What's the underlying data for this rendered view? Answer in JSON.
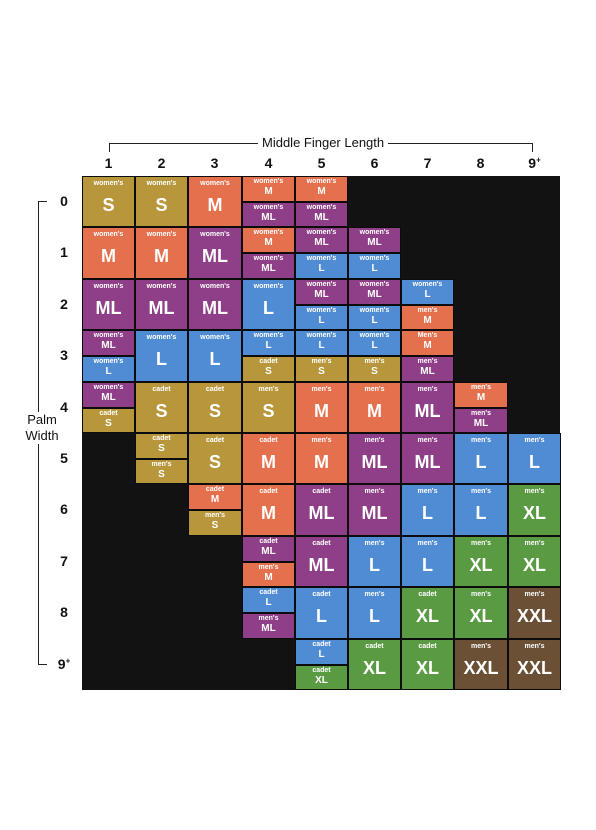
{
  "title": "Middle Finger Length",
  "side_label": [
    "Palm",
    "Width"
  ],
  "col_labels": [
    "1",
    "2",
    "3",
    "4",
    "5",
    "6",
    "7",
    "8",
    "9+"
  ],
  "row_labels": [
    "0",
    "1",
    "2",
    "3",
    "4",
    "5",
    "6",
    "7",
    "8",
    "9+"
  ],
  "colors": {
    "S": "#b8973c",
    "M": "#e4704d",
    "ML": "#8f3f87",
    "L": "#4f8cd3",
    "XL": "#5a9a43",
    "XXL": "#6b5035",
    "empty": "#121212"
  },
  "cells": [
    [
      [
        [
          "women's",
          "S"
        ]
      ],
      [
        [
          "women's",
          "S"
        ]
      ],
      [
        [
          "women's",
          "M"
        ]
      ],
      [
        [
          "women's",
          "M"
        ],
        [
          "women's",
          "ML"
        ]
      ],
      [
        [
          "women's",
          "M"
        ],
        [
          "women's",
          "ML"
        ]
      ],
      null,
      null,
      null,
      null
    ],
    [
      [
        [
          "women's",
          "M"
        ]
      ],
      [
        [
          "women's",
          "M"
        ]
      ],
      [
        [
          "women's",
          "ML"
        ]
      ],
      [
        [
          "women's",
          "M"
        ],
        [
          "women's",
          "ML"
        ]
      ],
      [
        [
          "women's",
          "ML"
        ],
        [
          "women's",
          "L"
        ]
      ],
      [
        [
          "women's",
          "ML"
        ],
        [
          "women's",
          "L"
        ]
      ],
      null,
      null,
      null
    ],
    [
      [
        [
          "women's",
          "ML"
        ]
      ],
      [
        [
          "women's",
          "ML"
        ]
      ],
      [
        [
          "women's",
          "ML"
        ]
      ],
      [
        [
          "women's",
          "L"
        ]
      ],
      [
        [
          "women's",
          "ML"
        ],
        [
          "women's",
          "L"
        ]
      ],
      [
        [
          "women's",
          "ML"
        ],
        [
          "women's",
          "L"
        ]
      ],
      [
        [
          "women's",
          "L"
        ],
        [
          "men's",
          "M"
        ]
      ],
      null,
      null
    ],
    [
      [
        [
          "women's",
          "ML"
        ],
        [
          "women's",
          "L"
        ]
      ],
      [
        [
          "women's",
          "L"
        ]
      ],
      [
        [
          "women's",
          "L"
        ]
      ],
      [
        [
          "women's",
          "L"
        ],
        [
          "cadet",
          "S"
        ]
      ],
      [
        [
          "women's",
          "L"
        ],
        [
          "men's",
          "S"
        ]
      ],
      [
        [
          "women's",
          "L"
        ],
        [
          "men's",
          "S"
        ]
      ],
      [
        [
          "Men's",
          "M"
        ],
        [
          "men's",
          "ML"
        ]
      ],
      null,
      null
    ],
    [
      [
        [
          "women's",
          "ML"
        ],
        [
          "cadet",
          "S"
        ]
      ],
      [
        [
          "cadet",
          "S"
        ]
      ],
      [
        [
          "cadet",
          "S"
        ]
      ],
      [
        [
          "men's",
          "S"
        ]
      ],
      [
        [
          "men's",
          "M"
        ]
      ],
      [
        [
          "men's",
          "M"
        ]
      ],
      [
        [
          "men's",
          "ML"
        ]
      ],
      [
        [
          "men's",
          "M"
        ],
        [
          "men's",
          "ML"
        ]
      ],
      null
    ],
    [
      null,
      [
        [
          "cadet",
          "S"
        ],
        [
          "men's",
          "S"
        ]
      ],
      [
        [
          "cadet",
          "S"
        ]
      ],
      [
        [
          "cadet",
          "M"
        ]
      ],
      [
        [
          "men's",
          "M"
        ]
      ],
      [
        [
          "men's",
          "ML"
        ]
      ],
      [
        [
          "men's",
          "ML"
        ]
      ],
      [
        [
          "men's",
          "L"
        ]
      ],
      [
        [
          "men's",
          "L"
        ]
      ]
    ],
    [
      null,
      null,
      [
        [
          "cadet",
          "M"
        ],
        [
          "men's",
          "S"
        ]
      ],
      [
        [
          "cadet",
          "M"
        ]
      ],
      [
        [
          "cadet",
          "ML"
        ]
      ],
      [
        [
          "men's",
          "ML"
        ]
      ],
      [
        [
          "men's",
          "L"
        ]
      ],
      [
        [
          "men's",
          "L"
        ]
      ],
      [
        [
          "men's",
          "XL"
        ]
      ]
    ],
    [
      null,
      null,
      null,
      [
        [
          "cadet",
          "ML"
        ],
        [
          "men's",
          "M"
        ]
      ],
      [
        [
          "cadet",
          "ML"
        ]
      ],
      [
        [
          "men's",
          "L"
        ]
      ],
      [
        [
          "men's",
          "L"
        ]
      ],
      [
        [
          "men's",
          "XL"
        ]
      ],
      [
        [
          "men's",
          "XL"
        ]
      ]
    ],
    [
      null,
      null,
      null,
      [
        [
          "cadet",
          "L"
        ],
        [
          "men's",
          "ML"
        ]
      ],
      [
        [
          "cadet",
          "L"
        ]
      ],
      [
        [
          "men's",
          "L"
        ]
      ],
      [
        [
          "cadet",
          "XL"
        ]
      ],
      [
        [
          "men's",
          "XL"
        ]
      ],
      [
        [
          "men's",
          "XXL"
        ]
      ]
    ],
    [
      null,
      null,
      null,
      null,
      [
        [
          "cadet",
          "L"
        ],
        [
          "cadet",
          "XL"
        ]
      ],
      [
        [
          "cadet",
          "XL"
        ]
      ],
      [
        [
          "cadet",
          "XL"
        ]
      ],
      [
        [
          "men's",
          "XXL"
        ]
      ],
      [
        [
          "men's",
          "XXL"
        ]
      ]
    ]
  ]
}
